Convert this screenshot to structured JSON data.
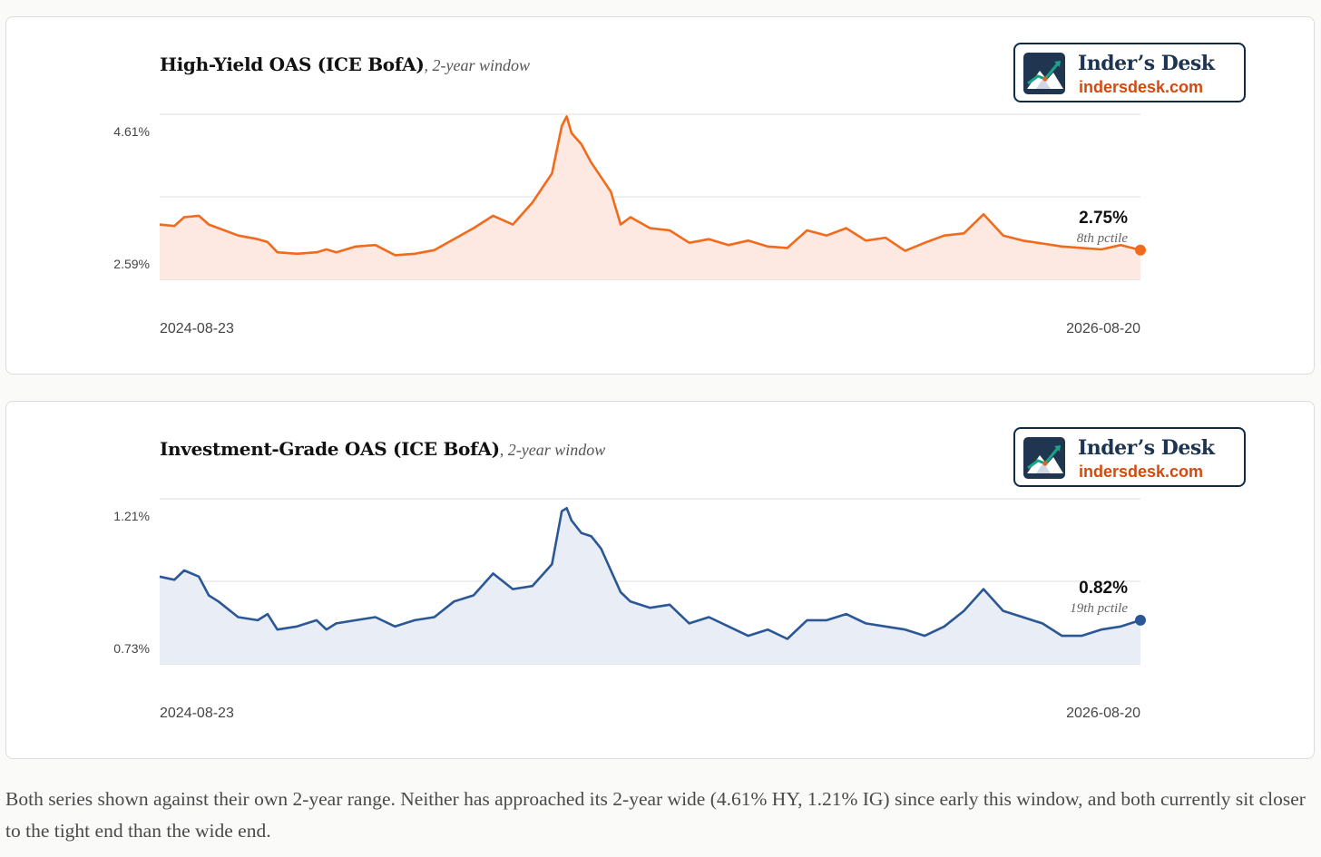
{
  "charts": [
    {
      "id": "hy",
      "title": "High-Yield OAS (ICE BofA)",
      "subtitle": ", 2-year window",
      "color": "#f26a1b",
      "fill": "#fde9e2",
      "logo": {
        "name": "Inder’s Desk",
        "url": "indersdesk.com"
      },
      "end_value_label": "2.75%",
      "end_pctile_label": "8th pctile"
    },
    {
      "id": "ig",
      "title": "Investment-Grade OAS (ICE BofA)",
      "subtitle": ", 2-year window",
      "color": "#2b5797",
      "fill": "#e9edf5",
      "logo": {
        "name": "Inder’s Desk",
        "url": "indersdesk.com"
      },
      "end_value_label": "0.82%",
      "end_pctile_label": "19th pctile"
    }
  ],
  "chart_data": [
    {
      "type": "area",
      "title": "High-Yield OAS (ICE BofA), 2-year window",
      "x_start": "2024-08-23",
      "x_end": "2026-08-20",
      "y_tick_labels": [
        "4.61%",
        "2.59%"
      ],
      "ylim": [
        2.35,
        4.61
      ],
      "grid": true,
      "series": [
        {
          "name": "",
          "x": [
            0,
            1.5,
            2.5,
            4,
            5,
            6,
            8,
            10,
            11,
            12,
            14,
            16,
            17,
            18,
            20,
            22,
            24,
            26,
            28,
            30,
            32,
            34,
            36,
            38,
            40,
            41,
            41.5,
            42,
            43,
            44,
            45,
            46,
            47,
            48,
            50,
            52,
            54,
            56,
            58,
            60,
            62,
            64,
            66,
            68,
            70,
            72,
            74,
            76,
            78,
            80,
            82,
            84,
            86,
            88,
            90,
            92,
            94,
            96,
            98,
            100
          ],
          "y": [
            3.1,
            3.08,
            3.2,
            3.22,
            3.1,
            3.05,
            2.95,
            2.9,
            2.86,
            2.72,
            2.7,
            2.72,
            2.76,
            2.72,
            2.8,
            2.82,
            2.68,
            2.7,
            2.75,
            2.9,
            3.05,
            3.22,
            3.1,
            3.4,
            3.8,
            4.45,
            4.58,
            4.35,
            4.2,
            3.95,
            3.75,
            3.55,
            3.1,
            3.2,
            3.05,
            3.02,
            2.85,
            2.9,
            2.82,
            2.88,
            2.8,
            2.78,
            3.02,
            2.95,
            3.05,
            2.88,
            2.92,
            2.74,
            2.85,
            2.95,
            2.98,
            3.24,
            2.95,
            2.88,
            2.84,
            2.8,
            2.78,
            2.76,
            2.82,
            2.75
          ]
        }
      ],
      "end_value": 2.75,
      "end_percentile": "8th pctile"
    },
    {
      "type": "area",
      "title": "Investment-Grade OAS (ICE BofA), 2-year window",
      "x_start": "2024-08-23",
      "x_end": "2026-08-20",
      "y_tick_labels": [
        "1.21%",
        "0.73%"
      ],
      "ylim": [
        0.68,
        1.21
      ],
      "grid": true,
      "series": [
        {
          "name": "",
          "x": [
            0,
            1.5,
            2.5,
            4,
            5,
            6,
            8,
            10,
            11,
            12,
            14,
            16,
            17,
            18,
            20,
            22,
            24,
            26,
            28,
            30,
            32,
            34,
            36,
            38,
            40,
            41,
            41.5,
            42,
            43,
            44,
            45,
            46,
            47,
            48,
            50,
            52,
            54,
            56,
            58,
            60,
            62,
            64,
            66,
            68,
            70,
            72,
            74,
            76,
            78,
            80,
            82,
            84,
            86,
            88,
            90,
            92,
            94,
            96,
            98,
            100
          ],
          "y": [
            0.96,
            0.95,
            0.98,
            0.96,
            0.9,
            0.88,
            0.83,
            0.82,
            0.84,
            0.79,
            0.8,
            0.82,
            0.79,
            0.81,
            0.82,
            0.83,
            0.8,
            0.82,
            0.83,
            0.88,
            0.9,
            0.97,
            0.92,
            0.93,
            1.0,
            1.17,
            1.18,
            1.14,
            1.1,
            1.09,
            1.05,
            0.98,
            0.91,
            0.88,
            0.86,
            0.87,
            0.81,
            0.83,
            0.8,
            0.77,
            0.79,
            0.76,
            0.82,
            0.82,
            0.84,
            0.81,
            0.8,
            0.79,
            0.77,
            0.8,
            0.85,
            0.92,
            0.85,
            0.83,
            0.81,
            0.77,
            0.77,
            0.79,
            0.8,
            0.82
          ]
        }
      ],
      "end_value": 0.82,
      "end_percentile": "19th pctile"
    }
  ],
  "caption": "Both series shown against their own 2-year range. Neither has approached its 2-year wide (4.61% HY, 1.21% IG) since early this window, and both currently sit closer to the tight end than the wide end."
}
